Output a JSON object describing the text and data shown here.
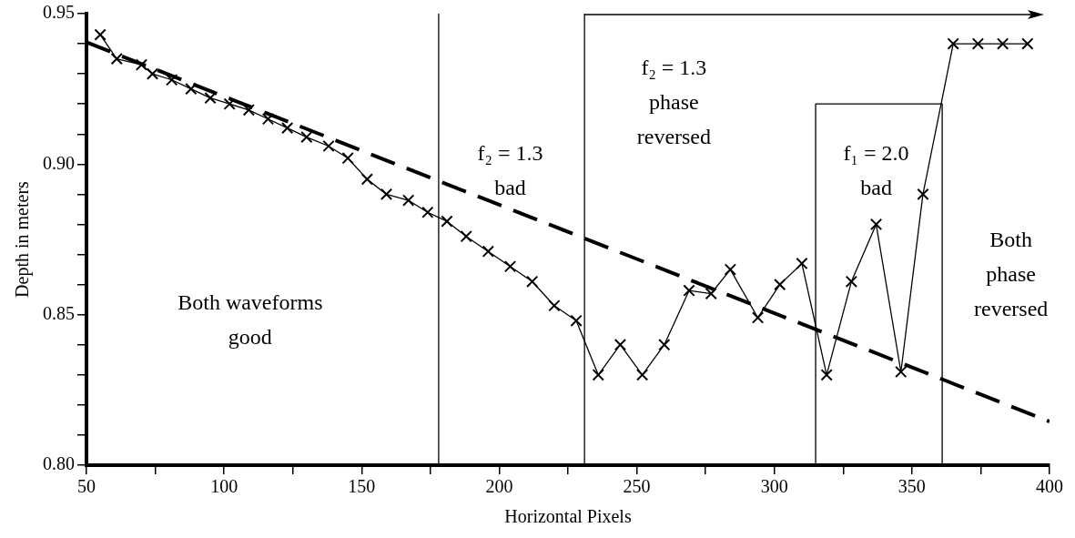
{
  "chart_data": {
    "type": "line",
    "xlabel": "Horizontal Pixels",
    "ylabel": "Depth in meters",
    "xlim": [
      50,
      400
    ],
    "xticks": [
      50,
      {
        "value": 75,
        "label": null
      },
      100,
      {
        "value": 125,
        "label": null
      },
      150,
      {
        "value": 175,
        "label": null
      },
      200,
      {
        "value": 225,
        "label": null
      },
      250,
      {
        "value": 275,
        "label": null
      },
      300,
      {
        "value": 325,
        "label": null
      },
      350,
      {
        "value": 375,
        "label": null
      },
      400
    ],
    "ylim": [
      0.8,
      0.95
    ],
    "yticks": [
      {
        "value": 0.8,
        "label": "0.80"
      },
      {
        "value": 0.81,
        "label": null
      },
      {
        "value": 0.82,
        "label": null
      },
      {
        "value": 0.83,
        "label": null
      },
      {
        "value": 0.84,
        "label": null
      },
      {
        "value": 0.85,
        "label": "0.85"
      },
      {
        "value": 0.86,
        "label": null
      },
      {
        "value": 0.87,
        "label": null
      },
      {
        "value": 0.88,
        "label": null
      },
      {
        "value": 0.89,
        "label": null
      },
      {
        "value": 0.9,
        "label": "0.90"
      },
      {
        "value": 0.91,
        "label": null
      },
      {
        "value": 0.92,
        "label": null
      },
      {
        "value": 0.93,
        "label": null
      },
      {
        "value": 0.94,
        "label": null
      },
      {
        "value": 0.95,
        "label": "0.95"
      }
    ],
    "grid": false,
    "legend": false,
    "series": [
      {
        "color": "#000000",
        "marker": "cross",
        "line_style": "solid",
        "x": [
          55,
          61,
          70,
          74,
          81,
          88,
          95,
          102,
          109,
          116,
          123,
          130,
          138,
          145,
          152,
          159,
          167,
          174,
          181,
          188,
          196,
          204,
          212,
          220,
          228,
          236,
          244,
          252,
          260,
          269,
          277,
          284,
          294,
          302,
          310,
          319,
          328,
          337,
          346,
          354,
          365,
          374,
          383,
          392
        ],
        "values": [
          0.943,
          0.935,
          0.933,
          0.93,
          0.928,
          0.925,
          0.922,
          0.92,
          0.918,
          0.915,
          0.912,
          0.909,
          0.906,
          0.902,
          0.895,
          0.89,
          0.888,
          0.884,
          0.881,
          0.876,
          0.871,
          0.866,
          0.861,
          0.853,
          0.848,
          0.83,
          0.84,
          0.83,
          0.84,
          0.858,
          0.857,
          0.865,
          0.849,
          0.86,
          0.867,
          0.83,
          0.861,
          0.88,
          0.831,
          0.89,
          0.94,
          0.94,
          0.94,
          0.94
        ]
      },
      {
        "color": "#000000",
        "marker": "none",
        "line_style": "dashed",
        "x": [
          50,
          400
        ],
        "values": [
          0.9405,
          0.8145
        ]
      },
      {
        "color": "#000000",
        "marker": "none",
        "line_style": "solid",
        "x": [
          315,
          315,
          361,
          361
        ],
        "values": [
          0.8,
          0.92,
          0.92,
          0.8
        ]
      }
    ],
    "ref_lines": [
      {
        "axis": "x",
        "value": 178,
        "color": "#000000"
      },
      {
        "axis": "x",
        "value": 231,
        "color": "#000000"
      }
    ],
    "annotations": [
      "Both waveforms\ngood",
      "f₂ = 1.3\nbad",
      "f₂ = 1.3\nphase\nreversed",
      "f₁ = 2.0\nbad",
      "Both\nphase\nreversed"
    ]
  }
}
